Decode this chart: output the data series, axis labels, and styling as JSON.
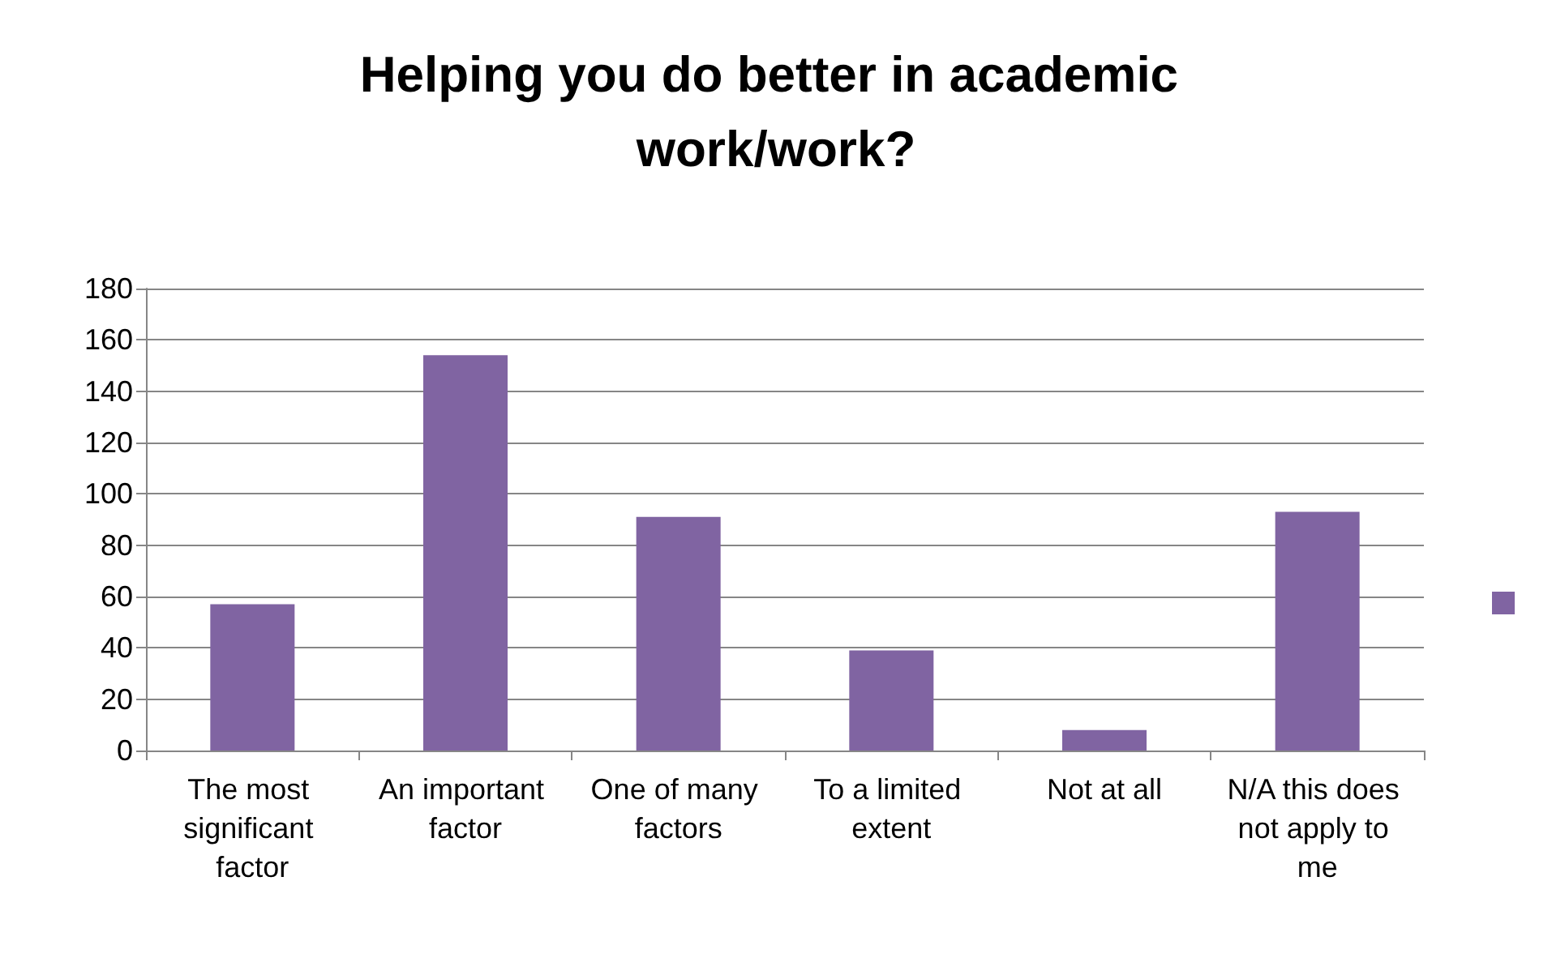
{
  "chart_data": {
    "type": "bar",
    "title": "Helping you do better in academic work/work?",
    "categories": [
      "The most significant factor",
      "An important factor",
      "One of many factors",
      "To a limited extent",
      "Not at all",
      "N/A this does not apply to me"
    ],
    "values": [
      57,
      154,
      91,
      39,
      8,
      93
    ],
    "color": "#8064a2",
    "ylim": [
      0,
      180
    ],
    "yticks": [
      0,
      20,
      40,
      60,
      80,
      100,
      120,
      140,
      160,
      180
    ],
    "grid": "y"
  }
}
